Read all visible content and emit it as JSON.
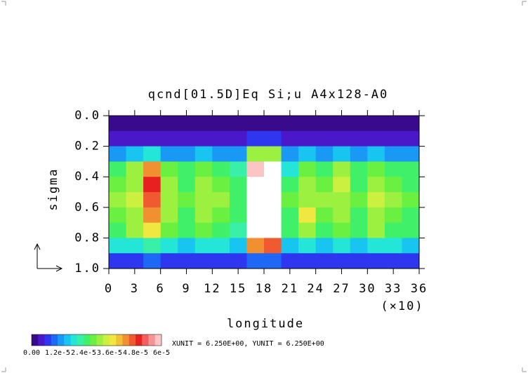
{
  "chart_data": {
    "type": "heatmap",
    "title": "qcnd[01.5D]Eq Si;u A4x128-A0",
    "y_label": "sigma",
    "x_label": "longitude",
    "x_annotation": "(×10)",
    "unit_note": "XUNIT = 6.250E+00, YUNIT = 6.250E+00",
    "xlim": [
      0,
      36
    ],
    "xticks": [
      0,
      3,
      6,
      9,
      12,
      15,
      18,
      21,
      24,
      27,
      30,
      33,
      36
    ],
    "ylim": [
      0,
      1
    ],
    "y_inverted": true,
    "yticks": [
      {
        "value": 0,
        "label": "0.0"
      },
      0.2,
      0.4,
      0.6,
      0.8,
      {
        "value": 1,
        "label": "1.0"
      }
    ],
    "x": [
      1,
      3,
      5,
      7,
      9,
      11,
      13,
      15,
      17,
      19,
      21,
      23,
      25,
      27,
      29,
      31,
      33,
      35
    ],
    "y": [
      0.05,
      0.15,
      0.25,
      0.35,
      0.45,
      0.55,
      0.65,
      0.75,
      0.85,
      0.95
    ],
    "values": [
      [
        2e-06,
        2e-06,
        2e-06,
        2e-06,
        2e-06,
        2e-06,
        2e-06,
        2e-06,
        2e-06,
        2e-06,
        2e-06,
        2e-06,
        2e-06,
        2e-06,
        2e-06,
        2e-06,
        2e-06,
        2e-06
      ],
      [
        5e-06,
        5e-06,
        5e-06,
        5e-06,
        5e-06,
        5e-06,
        5e-06,
        5e-06,
        8e-06,
        8e-06,
        5e-06,
        5e-06,
        5e-06,
        5e-06,
        5e-06,
        5e-06,
        5e-06,
        5e-06
      ],
      [
        1.4e-05,
        1.5e-05,
        1.8e-05,
        1.4e-05,
        1.3e-05,
        1.5e-05,
        1.4e-05,
        1.3e-05,
        3e-05,
        3.2e-05,
        1.4e-05,
        1.5e-05,
        1.2e-05,
        1.5e-05,
        1.4e-05,
        1.5e-05,
        1.4e-05,
        1.3e-05
      ],
      [
        2.6e-05,
        3e-05,
        4.4e-05,
        2.8e-05,
        2.4e-05,
        2.8e-05,
        2.6e-05,
        2.2e-05,
        5.8e-05,
        6e-05,
        2e-05,
        2.8e-05,
        2.4e-05,
        3e-05,
        2.4e-05,
        2.8e-05,
        2.6e-05,
        2.4e-05
      ],
      [
        2.8e-05,
        3.2e-05,
        4.8e-05,
        3e-05,
        2.6e-05,
        3e-05,
        2.8e-05,
        2.4e-05,
        6.4e-05,
        6.6e-05,
        2.6e-05,
        3e-05,
        2.8e-05,
        3.4e-05,
        2.6e-05,
        3.2e-05,
        2.8e-05,
        2.6e-05
      ],
      [
        3e-05,
        3.4e-05,
        4.6e-05,
        3.2e-05,
        2.8e-05,
        3.2e-05,
        3e-05,
        2.6e-05,
        6.6e-05,
        6.8e-05,
        2.8e-05,
        3.2e-05,
        3e-05,
        3.2e-05,
        2.8e-05,
        3.4e-05,
        3e-05,
        2.8e-05
      ],
      [
        2.8e-05,
        3.2e-05,
        4.2e-05,
        3e-05,
        2.6e-05,
        3e-05,
        2.8e-05,
        2.4e-05,
        6.6e-05,
        6.6e-05,
        2.6e-05,
        3.6e-05,
        2.8e-05,
        3e-05,
        2.6e-05,
        3.2e-05,
        2.8e-05,
        2.6e-05
      ],
      [
        2.6e-05,
        3e-05,
        3.6e-05,
        2.8e-05,
        2.4e-05,
        2.8e-05,
        2.6e-05,
        2.2e-05,
        6.2e-05,
        6.4e-05,
        2.4e-05,
        3e-05,
        2.6e-05,
        2.8e-05,
        2.4e-05,
        3e-05,
        2.6e-05,
        2.4e-05
      ],
      [
        1.8e-05,
        2e-05,
        2.2e-05,
        1.8e-05,
        1.6e-05,
        1.8e-05,
        1.8e-05,
        1.6e-05,
        4.2e-05,
        4.6e-05,
        1.6e-05,
        1.8e-05,
        1.6e-05,
        1.8e-05,
        1.6e-05,
        1.8e-05,
        1.8e-05,
        1.6e-05
      ],
      [
        8e-06,
        8e-06,
        9e-06,
        8e-06,
        8e-06,
        8e-06,
        8e-06,
        8e-06,
        1e-05,
        1e-05,
        8e-06,
        8e-06,
        8e-06,
        8e-06,
        8e-06,
        8e-06,
        8e-06,
        8e-06
      ]
    ],
    "colorbar": {
      "lim": [
        0,
        6e-05
      ],
      "ticks": [
        {
          "value": 0,
          "label": "0.00"
        },
        {
          "value": 1.2e-05,
          "label": "1.2e-5"
        },
        {
          "value": 2.4e-05,
          "label": "2.4e-5"
        },
        {
          "value": 3.6e-05,
          "label": "3.6e-5"
        },
        {
          "value": 4.8e-05,
          "label": "4.8e-5"
        },
        {
          "value": 6e-05,
          "label": "6e-5"
        }
      ],
      "colors": [
        "#3a0a8c",
        "#4a18c8",
        "#2e36f0",
        "#1e68f5",
        "#1a98f5",
        "#18c4f0",
        "#24e6d8",
        "#38f0a8",
        "#40f068",
        "#6af040",
        "#9cf040",
        "#ccf040",
        "#f0e840",
        "#f0c038",
        "#f09030",
        "#f05a30",
        "#e82020",
        "#f06060",
        "#f49494",
        "#fcc4c4"
      ],
      "over_color": "#ffffff"
    }
  }
}
